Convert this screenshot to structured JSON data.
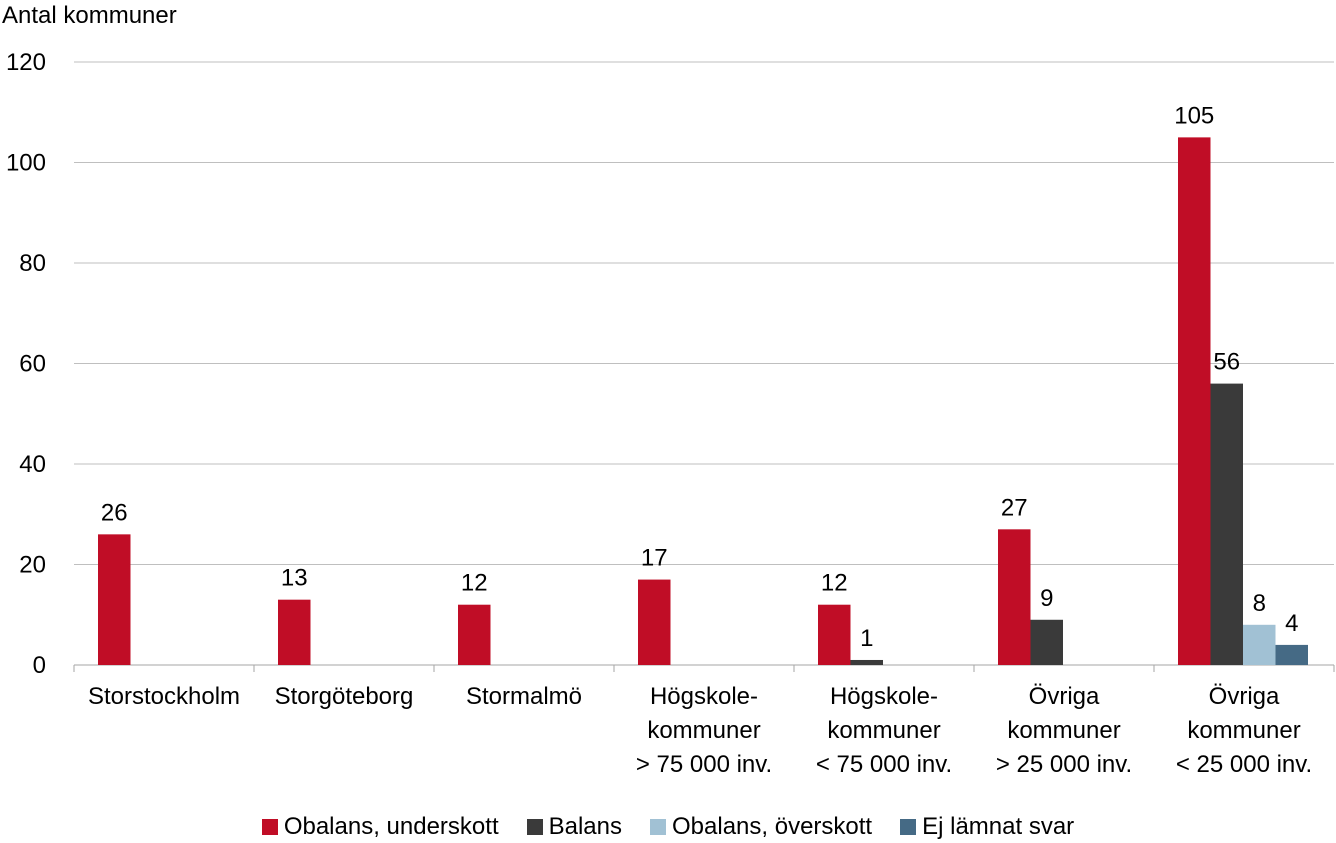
{
  "chart_data": {
    "type": "bar",
    "ylabel": "Antal kommuner",
    "ylim": [
      0,
      120
    ],
    "yticks": [
      "0",
      "20",
      "40",
      "60",
      "80",
      "100",
      "120"
    ],
    "grid": true,
    "legend_position": "bottom",
    "categories": [
      [
        "Storstockholm"
      ],
      [
        "Storgöteborg"
      ],
      [
        "Stormalmö"
      ],
      [
        "Högskole-",
        "kommuner",
        "> 75 000 inv."
      ],
      [
        "Högskole-",
        "kommuner",
        "< 75 000 inv."
      ],
      [
        "Övriga",
        "kommuner",
        "> 25 000 inv."
      ],
      [
        "Övriga",
        "kommuner",
        "< 25 000 inv."
      ]
    ],
    "series": [
      {
        "name": "Obalans, underskott",
        "color": "#C00D26",
        "values": [
          26,
          13,
          12,
          17,
          12,
          27,
          105
        ]
      },
      {
        "name": "Balans",
        "color": "#3A3A3A",
        "values": [
          null,
          null,
          null,
          null,
          1,
          9,
          56
        ]
      },
      {
        "name": "Obalans, överskott",
        "color": "#A1C1D4",
        "values": [
          null,
          null,
          null,
          null,
          null,
          null,
          8
        ]
      },
      {
        "name": "Ej lämnat svar",
        "color": "#456A85",
        "values": [
          null,
          null,
          null,
          null,
          null,
          null,
          4
        ]
      }
    ]
  }
}
